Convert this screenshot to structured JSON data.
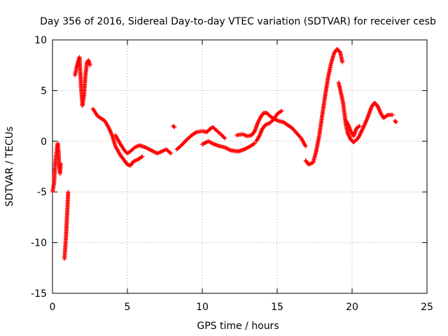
{
  "chart_data": {
    "type": "scatter",
    "title": "Day 356 of 2016, Sidereal Day-to-day VTEC variation (SDTVAR) for receiver cesb",
    "xlabel": "GPS time / hours",
    "ylabel": "SDTVAR / TECUs",
    "xlim": [
      0,
      25
    ],
    "ylim": [
      -15,
      10
    ],
    "xticks": [
      0,
      5,
      10,
      15,
      20,
      25
    ],
    "yticks": [
      -15,
      -10,
      -5,
      0,
      5,
      10
    ],
    "grid": true,
    "marker": "+",
    "series": [
      {
        "name": "SDTVAR",
        "color": "#ff0000",
        "segments": [
          [
            [
              0.0,
              -5.0
            ],
            [
              0.1,
              -4.2
            ],
            [
              0.15,
              -3.0
            ],
            [
              0.2,
              -2.0
            ],
            [
              0.25,
              -1.2
            ],
            [
              0.3,
              -0.6
            ],
            [
              0.35,
              -0.2
            ],
            [
              0.4,
              -1.0
            ],
            [
              0.45,
              -2.5
            ],
            [
              0.5,
              -3.2
            ],
            [
              0.55,
              -2.2
            ]
          ],
          [
            [
              0.8,
              -11.6
            ],
            [
              0.85,
              -10.5
            ],
            [
              0.9,
              -9.5
            ],
            [
              0.95,
              -8.0
            ],
            [
              1.0,
              -6.5
            ],
            [
              1.05,
              -5.0
            ]
          ],
          [
            [
              1.5,
              6.5
            ],
            [
              1.6,
              7.2
            ],
            [
              1.7,
              7.8
            ],
            [
              1.8,
              8.3
            ],
            [
              1.85,
              7.0
            ],
            [
              1.9,
              5.5
            ],
            [
              2.0,
              3.5
            ],
            [
              2.1,
              4.5
            ],
            [
              2.2,
              6.5
            ],
            [
              2.3,
              7.8
            ],
            [
              2.4,
              8.0
            ],
            [
              2.5,
              7.5
            ]
          ],
          [
            [
              2.7,
              3.2
            ],
            [
              3.0,
              2.5
            ],
            [
              3.5,
              2.0
            ],
            [
              3.8,
              1.2
            ],
            [
              4.0,
              0.5
            ],
            [
              4.2,
              -0.5
            ],
            [
              4.5,
              -1.3
            ],
            [
              4.8,
              -1.9
            ],
            [
              5.0,
              -2.3
            ],
            [
              5.2,
              -2.4
            ],
            [
              5.4,
              -2.0
            ],
            [
              5.7,
              -1.8
            ],
            [
              6.0,
              -1.5
            ]
          ],
          [
            [
              4.2,
              0.6
            ],
            [
              4.5,
              -0.2
            ],
            [
              4.8,
              -0.9
            ],
            [
              5.0,
              -1.2
            ],
            [
              5.2,
              -1.0
            ],
            [
              5.5,
              -0.6
            ],
            [
              5.8,
              -0.4
            ],
            [
              6.2,
              -0.6
            ],
            [
              6.6,
              -0.9
            ],
            [
              7.0,
              -1.2
            ],
            [
              7.3,
              -1.0
            ],
            [
              7.6,
              -0.8
            ],
            [
              7.9,
              -1.2
            ]
          ],
          [
            [
              8.05,
              1.5
            ],
            [
              8.15,
              1.4
            ]
          ],
          [
            [
              8.3,
              -0.8
            ],
            [
              8.6,
              -0.4
            ],
            [
              9.0,
              0.2
            ],
            [
              9.3,
              0.6
            ],
            [
              9.6,
              0.9
            ],
            [
              10.0,
              1.0
            ],
            [
              10.3,
              0.9
            ],
            [
              10.5,
              1.2
            ],
            [
              10.7,
              1.4
            ],
            [
              11.0,
              1.0
            ],
            [
              11.3,
              0.6
            ],
            [
              11.5,
              0.3
            ]
          ],
          [
            [
              10.0,
              -0.3
            ],
            [
              10.4,
              0.0
            ],
            [
              10.8,
              -0.3
            ],
            [
              11.2,
              -0.5
            ],
            [
              11.5,
              -0.6
            ],
            [
              11.9,
              -0.9
            ],
            [
              12.4,
              -1.0
            ],
            [
              12.8,
              -0.8
            ],
            [
              13.2,
              -0.5
            ],
            [
              13.5,
              -0.2
            ]
          ],
          [
            [
              12.3,
              0.6
            ],
            [
              12.7,
              0.7
            ],
            [
              13.0,
              0.5
            ],
            [
              13.3,
              0.6
            ],
            [
              13.5,
              1.0
            ],
            [
              13.7,
              1.8
            ],
            [
              13.9,
              2.4
            ],
            [
              14.1,
              2.8
            ],
            [
              14.3,
              2.8
            ],
            [
              14.5,
              2.5
            ],
            [
              14.8,
              2.2
            ],
            [
              15.1,
              2.0
            ],
            [
              15.4,
              1.9
            ],
            [
              15.7,
              1.6
            ],
            [
              16.0,
              1.3
            ],
            [
              16.3,
              0.8
            ],
            [
              16.6,
              0.3
            ],
            [
              16.9,
              -0.5
            ]
          ],
          [
            [
              13.6,
              0.0
            ],
            [
              13.8,
              0.5
            ],
            [
              14.0,
              1.2
            ],
            [
              14.2,
              1.6
            ],
            [
              14.5,
              1.8
            ],
            [
              14.8,
              2.2
            ],
            [
              15.0,
              2.7
            ],
            [
              15.3,
              3.0
            ]
          ],
          [
            [
              16.9,
              -1.9
            ],
            [
              17.1,
              -2.3
            ],
            [
              17.4,
              -2.1
            ],
            [
              17.6,
              -1.0
            ],
            [
              17.8,
              0.5
            ],
            [
              18.0,
              2.5
            ],
            [
              18.2,
              4.5
            ],
            [
              18.4,
              6.3
            ],
            [
              18.6,
              7.7
            ],
            [
              18.8,
              8.7
            ],
            [
              19.0,
              9.1
            ],
            [
              19.2,
              8.8
            ],
            [
              19.35,
              7.8
            ]
          ],
          [
            [
              19.1,
              5.8
            ],
            [
              19.25,
              4.8
            ],
            [
              19.4,
              3.8
            ],
            [
              19.5,
              2.6
            ],
            [
              19.6,
              1.5
            ],
            [
              19.7,
              0.8
            ],
            [
              19.9,
              0.2
            ],
            [
              20.1,
              -0.1
            ],
            [
              20.4,
              0.3
            ],
            [
              20.7,
              1.2
            ],
            [
              21.0,
              2.2
            ],
            [
              21.3,
              3.4
            ],
            [
              21.5,
              3.8
            ],
            [
              21.7,
              3.5
            ],
            [
              21.9,
              2.8
            ],
            [
              22.1,
              2.3
            ],
            [
              22.4,
              2.6
            ],
            [
              22.7,
              2.6
            ]
          ],
          [
            [
              19.6,
              2.0
            ],
            [
              19.75,
              1.6
            ],
            [
              19.9,
              1.0
            ],
            [
              20.1,
              0.5
            ],
            [
              20.3,
              1.3
            ],
            [
              20.5,
              1.5
            ]
          ],
          [
            [
              22.85,
              2.0
            ],
            [
              22.95,
              1.9
            ]
          ]
        ]
      }
    ]
  }
}
